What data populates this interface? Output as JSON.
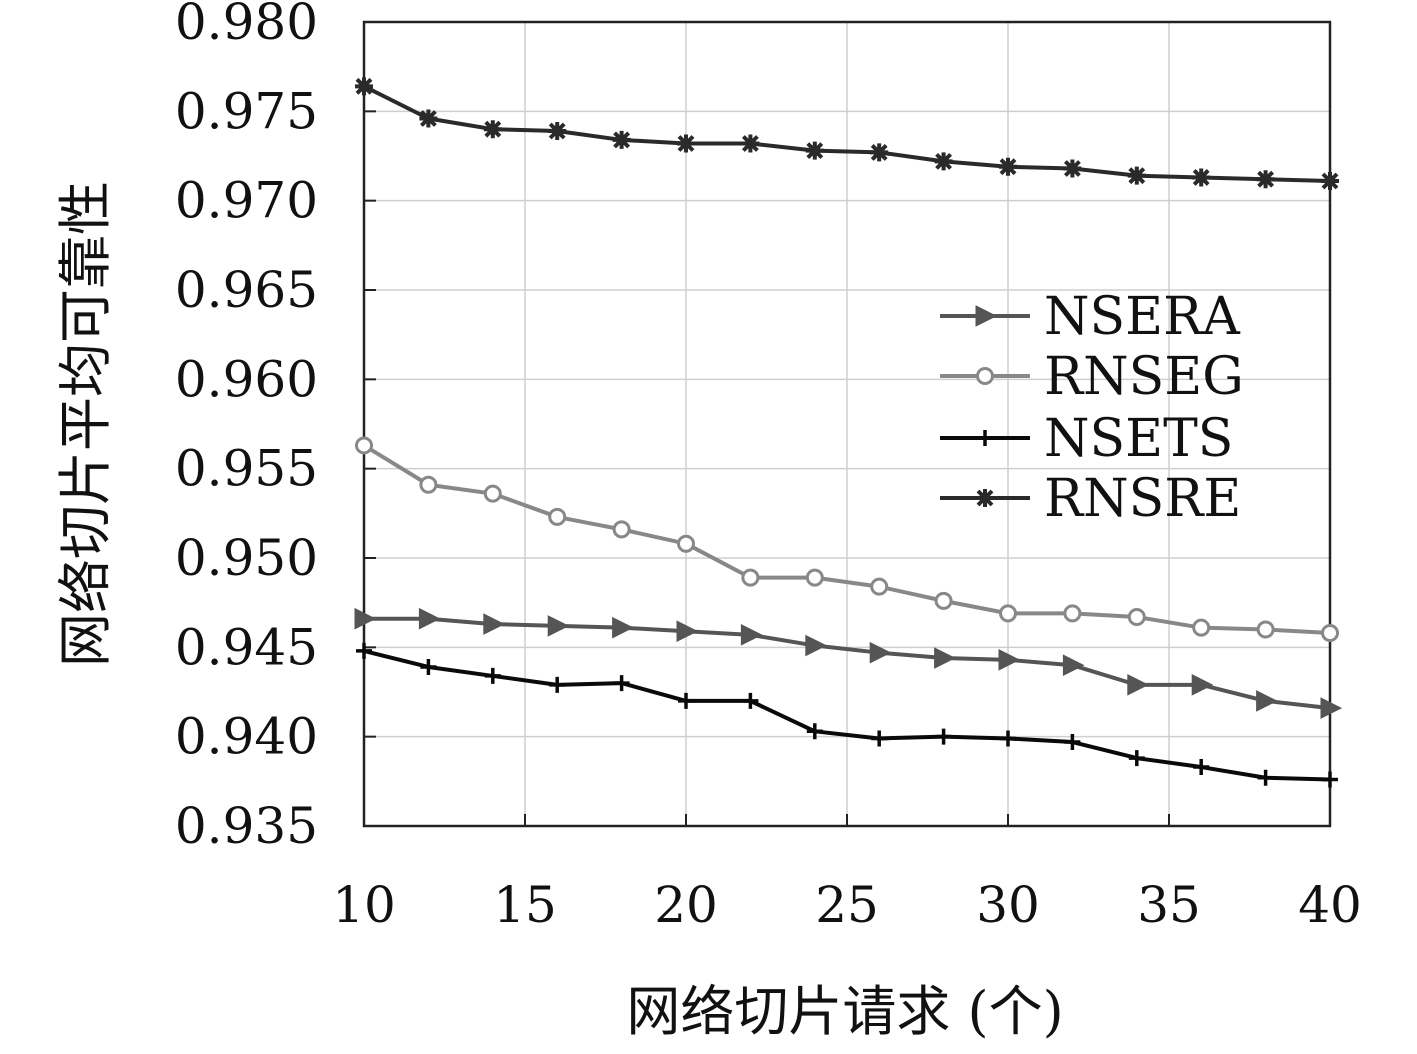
{
  "chart_data": {
    "type": "line",
    "xlabel": "网络切片请求 (个)",
    "ylabel": "网络切片平均可靠性",
    "xlim": [
      10,
      40
    ],
    "ylim": [
      0.935,
      0.98
    ],
    "x_ticks": [
      "10",
      "15",
      "20",
      "25",
      "30",
      "35",
      "40"
    ],
    "y_ticks": [
      "0.980",
      "0.975",
      "0.970",
      "0.965",
      "0.960",
      "0.955",
      "0.950",
      "0.945",
      "0.940",
      "0.935"
    ],
    "grid": true,
    "legend_position": "right",
    "x": [
      10,
      12,
      14,
      16,
      18,
      20,
      22,
      24,
      26,
      28,
      30,
      32,
      34,
      36,
      38,
      40
    ],
    "series": [
      {
        "name": "NSERA",
        "marker": "triangle-right",
        "color": "#555555",
        "values": [
          0.9466,
          0.9466,
          0.9463,
          0.9462,
          0.9461,
          0.9459,
          0.9457,
          0.9451,
          0.9447,
          0.9444,
          0.9443,
          0.944,
          0.9429,
          0.9429,
          0.942,
          0.9416
        ]
      },
      {
        "name": "RNSEG",
        "marker": "circle-open",
        "color": "#888888",
        "values": [
          0.9563,
          0.9541,
          0.9536,
          0.9523,
          0.9516,
          0.9508,
          0.9489,
          0.9489,
          0.9484,
          0.9476,
          0.9469,
          0.9469,
          0.9467,
          0.9461,
          0.946,
          0.9458
        ]
      },
      {
        "name": "NSETS",
        "marker": "plus",
        "color": "#0a0a0a",
        "values": [
          0.9448,
          0.9439,
          0.9434,
          0.9429,
          0.943,
          0.942,
          0.942,
          0.9403,
          0.9399,
          0.94,
          0.9399,
          0.9397,
          0.9388,
          0.9383,
          0.9377,
          0.9376
        ]
      },
      {
        "name": "RNSRE",
        "marker": "star-filled",
        "color": "#2a2a2a",
        "values": [
          0.9764,
          0.9746,
          0.974,
          0.9739,
          0.9734,
          0.9732,
          0.9732,
          0.9728,
          0.9727,
          0.9722,
          0.9719,
          0.9718,
          0.9714,
          0.9713,
          0.9712,
          0.9711
        ]
      }
    ]
  }
}
